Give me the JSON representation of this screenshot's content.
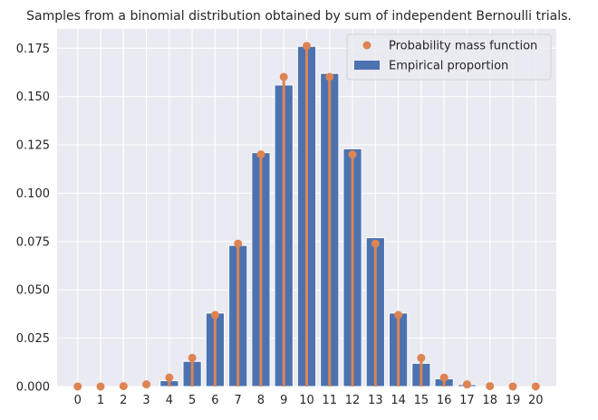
{
  "chart_data": {
    "type": "bar",
    "title": "Samples from a binomial distribution obtained by sum of independent Bernoulli trials.",
    "xlabel": "",
    "ylabel": "",
    "categories": [
      "0",
      "1",
      "2",
      "3",
      "4",
      "5",
      "6",
      "7",
      "8",
      "9",
      "10",
      "11",
      "12",
      "13",
      "14",
      "15",
      "16",
      "17",
      "18",
      "19",
      "20"
    ],
    "series": [
      {
        "name": "Empirical proportion",
        "type": "bar",
        "values": [
          0.0,
          0.0,
          0.0,
          0.0,
          0.003,
          0.013,
          0.038,
          0.073,
          0.121,
          0.156,
          0.176,
          0.162,
          0.123,
          0.077,
          0.038,
          0.012,
          0.004,
          0.001,
          0.0,
          0.0,
          0.0
        ]
      },
      {
        "name": "Probability mass function",
        "type": "stem",
        "values": [
          0.0,
          0.0,
          0.0002,
          0.0011,
          0.0046,
          0.0148,
          0.037,
          0.0739,
          0.1201,
          0.1602,
          0.1762,
          0.1602,
          0.1201,
          0.0739,
          0.037,
          0.0148,
          0.0046,
          0.0011,
          0.0002,
          0.0,
          0.0
        ]
      }
    ],
    "yticks": [
      "0.000",
      "0.025",
      "0.050",
      "0.075",
      "0.100",
      "0.125",
      "0.150",
      "0.175"
    ],
    "ylim": [
      0,
      0.185
    ],
    "grid": true,
    "legend": {
      "placement": "top-right",
      "entries": [
        "Probability mass function",
        "Empirical proportion"
      ]
    },
    "colors": {
      "bar": "#4c72b0",
      "pmf": "#dd8452",
      "background": "#eaeaf2",
      "grid": "#ffffff"
    }
  }
}
